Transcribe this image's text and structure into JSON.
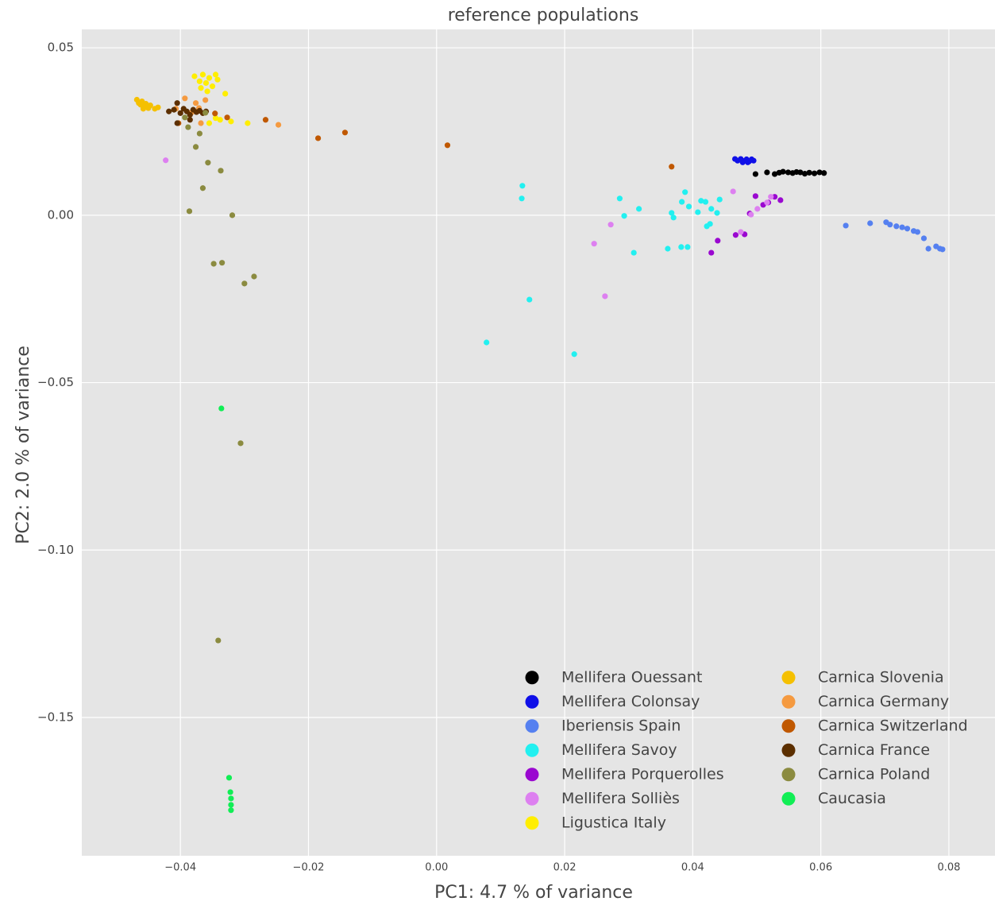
{
  "chart_data": {
    "type": "scatter",
    "title": "reference populations",
    "x_label": "PC1: 4.7 % of variance",
    "y_label": "PC2: 2.0 % of variance",
    "xlim": [
      -0.0554,
      0.0872
    ],
    "ylim": [
      -0.1913,
      0.0555
    ],
    "xticks": [
      {
        "value": -0.04,
        "label": "−0.04"
      },
      {
        "value": -0.02,
        "label": "−0.02"
      },
      {
        "value": 0,
        "label": "0.00"
      },
      0.02,
      0.04,
      0.06,
      0.08
    ],
    "yticks": [
      {
        "value": -0.15,
        "label": "−0.15"
      },
      {
        "value": -0.1,
        "label": "−0.10"
      },
      {
        "value": -0.05,
        "label": "−0.05"
      },
      {
        "value": 0,
        "label": "0.00"
      },
      0.05
    ],
    "grid": true,
    "legend": "lower right",
    "series": [
      {
        "name": "Mellifera Ouessant",
        "color": "#000000",
        "x": [
          0.0498,
          0.0516,
          0.0528,
          0.0535,
          0.0541,
          0.0549,
          0.0556,
          0.0562,
          0.0568,
          0.0575,
          0.0582,
          0.059,
          0.0598,
          0.0605
        ],
        "values": [
          0.0123,
          0.0128,
          0.0123,
          0.0127,
          0.013,
          0.0128,
          0.0126,
          0.0129,
          0.0128,
          0.0124,
          0.0127,
          0.0125,
          0.0128,
          0.0126
        ]
      },
      {
        "name": "Mellifera Colonsay",
        "color": "#1010e8",
        "x": [
          0.0466,
          0.047,
          0.0475,
          0.048,
          0.0484,
          0.0488,
          0.0492,
          0.0495,
          0.0478,
          0.0486
        ],
        "values": [
          0.0168,
          0.0163,
          0.0168,
          0.0162,
          0.0167,
          0.0161,
          0.0167,
          0.0163,
          0.0158,
          0.0158
        ]
      },
      {
        "name": "Iberiensis Spain",
        "color": "#5580f0",
        "x": [
          0.0639,
          0.0677,
          0.0702,
          0.0708,
          0.0718,
          0.0727,
          0.0735,
          0.0745,
          0.0751,
          0.0761,
          0.0768,
          0.078,
          0.0786,
          0.079
        ],
        "values": [
          -0.0031,
          -0.0024,
          -0.0021,
          -0.0028,
          -0.0033,
          -0.0036,
          -0.004,
          -0.0047,
          -0.005,
          -0.0069,
          -0.01,
          -0.0093,
          -0.01,
          -0.0102
        ]
      },
      {
        "name": "Mellifera Savoy",
        "color": "#22f0f0",
        "x": [
          0.0134,
          0.0133,
          0.0078,
          0.0145,
          0.0215,
          0.0286,
          0.0293,
          0.0308,
          0.0316,
          0.0361,
          0.0367,
          0.037,
          0.0382,
          0.0383,
          0.0388,
          0.0392,
          0.0394,
          0.0408,
          0.0413,
          0.042,
          0.0422,
          0.0427,
          0.0429,
          0.0438,
          0.0442
        ],
        "values": [
          0.0088,
          0.005,
          -0.038,
          -0.0252,
          -0.0415,
          0.005,
          -0.0002,
          -0.0112,
          0.0019,
          -0.01,
          0.0007,
          -0.0007,
          -0.0095,
          0.004,
          0.0069,
          -0.0095,
          0.0026,
          0.0009,
          0.0043,
          0.004,
          -0.0033,
          -0.0026,
          0.0019,
          0.0007,
          0.0047
        ]
      },
      {
        "name": "Mellifera Porquerolles",
        "color": "#9a08d0",
        "x": [
          0.0429,
          0.0439,
          0.0467,
          0.0481,
          0.0489,
          0.0498,
          0.051,
          0.0518,
          0.0528,
          0.0537
        ],
        "values": [
          -0.0112,
          -0.0076,
          -0.0059,
          -0.0057,
          0.0005,
          0.0057,
          0.0031,
          0.0038,
          0.0055,
          0.0045
        ]
      },
      {
        "name": "Mellifera Solliès",
        "color": "#dd80f0",
        "x": [
          -0.0423,
          0.0246,
          0.0272,
          0.0263,
          0.0463,
          0.0475,
          0.0491,
          0.0501,
          0.0516,
          0.0522
        ],
        "values": [
          0.0164,
          -0.0085,
          -0.0028,
          -0.0242,
          0.0071,
          -0.005,
          0.0002,
          0.0019,
          0.0038,
          0.0055
        ]
      },
      {
        "name": "Ligustica Italy",
        "color": "#ffee00",
        "x": [
          -0.0378,
          -0.037,
          -0.0365,
          -0.036,
          -0.0355,
          -0.035,
          -0.0345,
          -0.0342,
          -0.0368,
          -0.0358,
          -0.0355,
          -0.033,
          -0.0321,
          -0.0295,
          -0.0345,
          -0.0338
        ],
        "values": [
          0.0415,
          0.04,
          0.042,
          0.0395,
          0.041,
          0.0385,
          0.042,
          0.0405,
          0.038,
          0.037,
          0.0275,
          0.0363,
          0.028,
          0.0275,
          0.029,
          0.0285
        ]
      },
      {
        "name": "Carnica Slovenia",
        "color": "#f5c000",
        "x": [
          -0.0468,
          -0.0465,
          -0.0462,
          -0.046,
          -0.0457,
          -0.0454,
          -0.045,
          -0.0447,
          -0.044,
          -0.0435,
          -0.0458
        ],
        "values": [
          0.0345,
          0.0335,
          0.033,
          0.034,
          0.0325,
          0.0333,
          0.032,
          0.0328,
          0.0318,
          0.0322,
          0.0318
        ]
      },
      {
        "name": "Carnica Germany",
        "color": "#f59a40",
        "x": [
          -0.0393,
          -0.0376,
          -0.0371,
          -0.0361,
          -0.0383,
          -0.0247,
          -0.0407,
          -0.0368
        ],
        "values": [
          0.0349,
          0.0335,
          0.032,
          0.0344,
          0.0306,
          0.027,
          0.0318,
          0.0275
        ]
      },
      {
        "name": "Carnica Switzerland",
        "color": "#c05800",
        "x": [
          -0.0267,
          -0.0185,
          -0.0143,
          0.0017,
          0.0367,
          -0.0346,
          -0.0403,
          -0.0327
        ],
        "values": [
          0.0285,
          0.023,
          0.0247,
          0.0209,
          0.0145,
          0.0304,
          0.0275,
          0.0292
        ]
      },
      {
        "name": "Carnica France",
        "color": "#5c2f00",
        "x": [
          -0.0418,
          -0.041,
          -0.0405,
          -0.04,
          -0.0395,
          -0.039,
          -0.0385,
          -0.038,
          -0.0375,
          -0.037,
          -0.0365,
          -0.036,
          -0.0405,
          -0.0385
        ],
        "values": [
          0.031,
          0.0315,
          0.0335,
          0.0305,
          0.0318,
          0.031,
          0.03,
          0.0315,
          0.0308,
          0.0312,
          0.0305,
          0.031,
          0.0275,
          0.0285
        ]
      },
      {
        "name": "Carnica Poland",
        "color": "#8b8b40",
        "x": [
          -0.0388,
          -0.0376,
          -0.037,
          -0.0357,
          -0.0337,
          -0.0365,
          -0.0386,
          -0.0319,
          -0.0348,
          -0.0335,
          -0.0285,
          -0.03,
          -0.0306,
          -0.0341,
          -0.0393,
          -0.0361
        ],
        "values": [
          0.0263,
          0.0204,
          0.0244,
          0.0157,
          0.0133,
          0.0081,
          0.0012,
          0,
          -0.0145,
          -0.0142,
          -0.0183,
          -0.0204,
          -0.0681,
          -0.127,
          0.0292,
          0.0306
        ]
      },
      {
        "name": "Caucasia",
        "color": "#11ee55",
        "x": [
          -0.0336,
          -0.0324,
          -0.0322,
          -0.0321,
          -0.0321,
          -0.0321
        ],
        "values": [
          -0.0577,
          -0.168,
          -0.1723,
          -0.1742,
          -0.1761,
          -0.1777
        ]
      }
    ]
  }
}
